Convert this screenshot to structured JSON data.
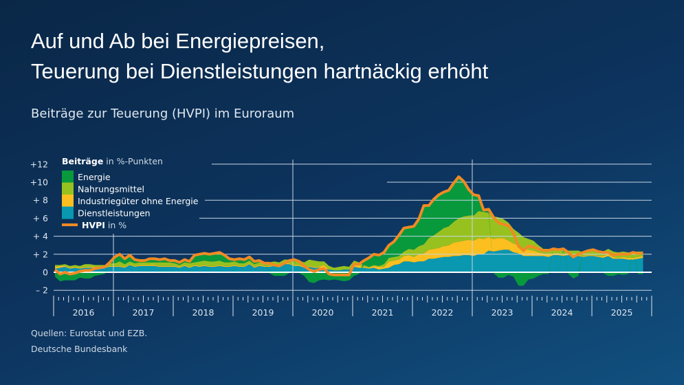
{
  "title_line1": "Auf und Ab bei Energiepreisen,",
  "title_line2": "Teuerung bei Dienstleistungen hartnäckig erhöht",
  "subtitle": "Beiträge zur Teuerung (HVPI) im Euroraum",
  "sources": [
    "Quellen: Eurostat und EZB.",
    "Deutsche Bundesbank"
  ],
  "chart_data": {
    "type": "area",
    "stacked": true,
    "legend_title_bold": "Beiträge",
    "legend_title_rest": " in %-Punkten",
    "legend_placement": "top-left",
    "grid": true,
    "x_start": "2016-01",
    "x_frequency": "monthly",
    "x_tick_labels": [
      "2016",
      "2017",
      "2018",
      "2019",
      "2020",
      "2021",
      "2022",
      "2023",
      "2024",
      "2025"
    ],
    "y_tick_labels": [
      "+12",
      "+10",
      "+ 8",
      "+ 6",
      "+ 4",
      "+ 2",
      "0",
      "– 2"
    ],
    "y_ticks": [
      12,
      10,
      8,
      6,
      4,
      2,
      0,
      -2
    ],
    "ylim": [
      -2,
      12
    ],
    "series": [
      {
        "name": "Dienstleistungen",
        "color": "#0a97b0",
        "values": [
          0.4,
          0.5,
          0.6,
          0.4,
          0.5,
          0.4,
          0.5,
          0.5,
          0.5,
          0.5,
          0.5,
          0.6,
          0.6,
          0.6,
          0.5,
          0.8,
          0.6,
          0.7,
          0.7,
          0.7,
          0.7,
          0.6,
          0.6,
          0.6,
          0.6,
          0.5,
          0.7,
          0.5,
          0.7,
          0.6,
          0.7,
          0.6,
          0.6,
          0.7,
          0.6,
          0.6,
          0.7,
          0.6,
          0.6,
          0.9,
          0.5,
          0.7,
          0.6,
          0.6,
          0.7,
          0.7,
          0.9,
          0.9,
          0.7,
          0.7,
          0.5,
          0.6,
          0.5,
          0.5,
          0.4,
          0.3,
          0.2,
          0.2,
          0.3,
          0.3,
          0.6,
          0.5,
          0.5,
          0.4,
          0.5,
          0.3,
          0.4,
          0.5,
          0.8,
          0.9,
          1.2,
          1.2,
          1.1,
          1.2,
          1.2,
          1.5,
          1.5,
          1.6,
          1.7,
          1.7,
          1.8,
          1.8,
          1.9,
          1.9,
          1.8,
          2.0,
          2.0,
          2.4,
          2.3,
          2.4,
          2.5,
          2.5,
          2.2,
          2.1,
          1.8,
          1.8,
          1.8,
          1.8,
          1.8,
          1.7,
          1.9,
          1.9,
          1.8,
          1.9,
          1.8,
          1.8,
          1.7,
          1.8,
          1.8,
          1.7,
          1.6,
          1.8,
          1.5,
          1.5,
          1.5,
          1.4,
          1.4,
          1.5,
          1.6
        ]
      },
      {
        "name": "Industriegüter ohne Energie",
        "color": "#fbbf1f",
        "values": [
          0.2,
          0.2,
          0.1,
          0.1,
          0.1,
          0.1,
          0.1,
          0.1,
          0.1,
          0.1,
          0.1,
          0.1,
          0.1,
          0.1,
          0.1,
          0.1,
          0.1,
          0.1,
          0.1,
          0.1,
          0.1,
          0.1,
          0.1,
          0.1,
          0.1,
          0.1,
          0.1,
          0.1,
          0.1,
          0.1,
          0.1,
          0.1,
          0.1,
          0.1,
          0.1,
          0.1,
          0.1,
          0.1,
          0.1,
          0.1,
          0.1,
          0.1,
          0.1,
          0.1,
          0.1,
          0.1,
          0.1,
          0.1,
          0.1,
          0.1,
          0.1,
          0.1,
          0.1,
          0.1,
          0.4,
          0.0,
          0.0,
          0.0,
          0.0,
          0.0,
          0.4,
          0.3,
          0.1,
          0.1,
          0.2,
          0.3,
          0.2,
          0.7,
          0.5,
          0.5,
          0.6,
          0.7,
          0.6,
          0.8,
          0.9,
          1.0,
          1.1,
          1.1,
          1.2,
          1.3,
          1.5,
          1.6,
          1.6,
          1.7,
          1.7,
          1.8,
          1.7,
          1.5,
          1.4,
          1.4,
          1.3,
          1.0,
          1.0,
          0.9,
          0.8,
          0.7,
          0.6,
          0.4,
          0.3,
          0.3,
          0.2,
          0.2,
          0.2,
          0.1,
          0.1,
          0.1,
          0.1,
          0.1,
          0.1,
          0.1,
          0.2,
          0.2,
          0.2,
          0.1,
          0.2,
          0.2,
          0.2,
          0.2,
          0.2
        ]
      },
      {
        "name": "Nahrungsmittel",
        "color": "#97c11f",
        "values": [
          0.2,
          0.1,
          0.2,
          0.2,
          0.2,
          0.2,
          0.3,
          0.3,
          0.2,
          0.2,
          0.2,
          0.3,
          0.3,
          0.5,
          0.3,
          0.3,
          0.3,
          0.3,
          0.3,
          0.3,
          0.3,
          0.4,
          0.4,
          0.4,
          0.3,
          0.2,
          0.3,
          0.4,
          0.3,
          0.5,
          0.5,
          0.5,
          0.5,
          0.5,
          0.4,
          0.4,
          0.4,
          0.3,
          0.3,
          0.3,
          0.3,
          0.3,
          0.3,
          0.4,
          0.4,
          0.3,
          0.4,
          0.4,
          0.5,
          0.5,
          0.5,
          0.7,
          0.7,
          0.6,
          0.4,
          0.4,
          0.3,
          0.4,
          0.4,
          0.3,
          0.3,
          0.3,
          0.2,
          0.1,
          0.1,
          0.1,
          0.3,
          0.4,
          0.4,
          0.4,
          0.5,
          0.7,
          0.8,
          0.9,
          1.0,
          1.3,
          1.5,
          1.8,
          2.0,
          2.1,
          2.3,
          2.6,
          2.7,
          2.7,
          2.8,
          3.0,
          3.0,
          2.7,
          2.5,
          2.3,
          2.1,
          2.0,
          1.6,
          1.4,
          1.3,
          1.2,
          1.1,
          0.8,
          0.5,
          0.6,
          0.5,
          0.5,
          0.4,
          0.4,
          0.5,
          0.5,
          0.4,
          0.5,
          0.5,
          0.5,
          0.5,
          0.6,
          0.6,
          0.6,
          0.6,
          0.6,
          0.6,
          0.6,
          0.5
        ]
      },
      {
        "name": "Energie",
        "color": "#08993d",
        "values": [
          -0.5,
          -1.0,
          -0.9,
          -0.9,
          -0.9,
          -0.6,
          -0.7,
          -0.7,
          -0.4,
          -0.3,
          -0.2,
          0.1,
          0.7,
          0.8,
          0.6,
          0.7,
          0.4,
          0.2,
          0.2,
          0.4,
          0.4,
          0.3,
          0.4,
          0.2,
          0.3,
          0.3,
          0.3,
          0.2,
          0.8,
          0.8,
          0.8,
          0.8,
          0.9,
          0.9,
          0.8,
          0.4,
          0.2,
          0.5,
          0.4,
          0.4,
          0.3,
          0.2,
          0.0,
          -0.1,
          -0.4,
          -0.4,
          -0.4,
          -0.1,
          0.1,
          -0.1,
          -0.4,
          -1.1,
          -1.2,
          -0.9,
          -0.8,
          -0.9,
          -0.8,
          -0.9,
          -1.0,
          -0.9,
          -0.4,
          -0.2,
          0.5,
          1.0,
          1.2,
          1.2,
          1.3,
          1.4,
          1.7,
          2.3,
          2.6,
          2.4,
          2.6,
          3.0,
          4.3,
          3.6,
          4.0,
          4.1,
          4.0,
          4.0,
          4.3,
          4.6,
          3.9,
          2.9,
          2.3,
          1.7,
          0.2,
          0.4,
          -0.1,
          -0.6,
          -0.6,
          -0.3,
          -0.5,
          -1.5,
          -1.5,
          -0.8,
          -0.7,
          -0.4,
          -0.2,
          -0.2,
          0.0,
          -0.1,
          0.2,
          -0.2,
          -0.7,
          -0.4,
          0.0,
          0.0,
          0.1,
          0.0,
          -0.1,
          -0.4,
          -0.4,
          -0.2,
          -0.3,
          -0.2,
          0.0,
          -0.2,
          -0.2
        ]
      },
      {
        "name": "HVPI",
        "name_suffix": " in %",
        "color": "#f08a24",
        "type": "line",
        "values": [
          0.3,
          -0.2,
          0.0,
          -0.2,
          -0.1,
          0.1,
          0.2,
          0.2,
          0.4,
          0.5,
          0.6,
          1.1,
          1.7,
          2.0,
          1.5,
          1.9,
          1.4,
          1.3,
          1.3,
          1.5,
          1.5,
          1.4,
          1.5,
          1.3,
          1.3,
          1.1,
          1.4,
          1.2,
          1.9,
          2.0,
          2.1,
          2.0,
          2.1,
          2.2,
          1.9,
          1.5,
          1.4,
          1.5,
          1.4,
          1.7,
          1.2,
          1.3,
          1.0,
          1.0,
          0.8,
          0.7,
          1.0,
          1.3,
          1.4,
          1.2,
          0.7,
          0.3,
          0.1,
          0.3,
          0.4,
          -0.2,
          -0.3,
          -0.3,
          -0.3,
          -0.3,
          0.9,
          0.9,
          1.3,
          1.6,
          2.0,
          1.9,
          2.2,
          3.0,
          3.4,
          4.1,
          4.9,
          5.0,
          5.1,
          5.9,
          7.4,
          7.4,
          8.1,
          8.6,
          8.9,
          9.1,
          9.9,
          10.6,
          10.1,
          9.2,
          8.6,
          8.5,
          6.9,
          7.0,
          6.1,
          5.5,
          5.3,
          5.2,
          4.3,
          2.9,
          2.4,
          2.9,
          2.8,
          2.6,
          2.4,
          2.4,
          2.6,
          2.5,
          2.6,
          2.2,
          1.7,
          2.0,
          2.2,
          2.4,
          2.5,
          2.3,
          2.2,
          2.2,
          1.9,
          2.0,
          2.0,
          2.0,
          2.2,
          2.1,
          2.1
        ]
      }
    ]
  }
}
